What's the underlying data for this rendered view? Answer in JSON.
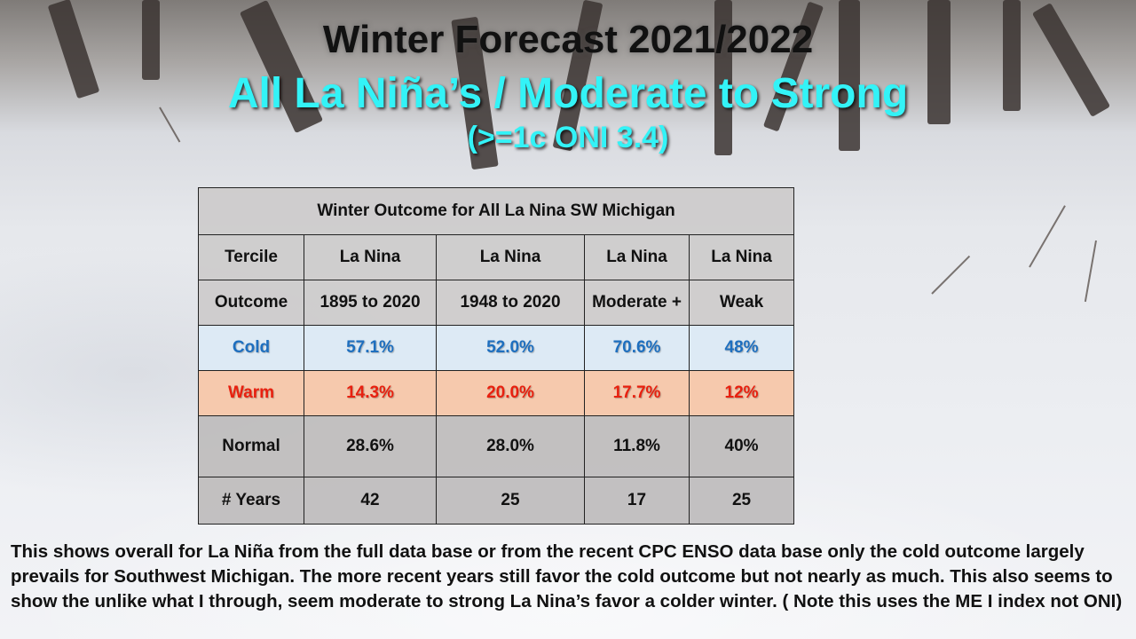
{
  "title": "Winter Forecast 2021/2022",
  "subtitle": "All La Niña’s / Moderate to Strong",
  "subtitle2": "(>=1c ONI 3.4)",
  "table": {
    "heading": "Winter Outcome for All La Nina SW Michigan",
    "tercile_row": [
      "Tercile",
      "La Nina",
      "La Nina",
      "La Nina",
      "La Nina"
    ],
    "outcome_row": [
      "Outcome",
      "1895 to 2020",
      "1948 to 2020",
      "Moderate +",
      "Weak"
    ],
    "rows": [
      {
        "label": "Cold",
        "values": [
          "57.1%",
          "52.0%",
          "70.6%",
          "48%"
        ],
        "color": "#1e6fbf"
      },
      {
        "label": "Warm",
        "values": [
          "14.3%",
          "20.0%",
          "17.7%",
          "12%"
        ],
        "color": "#e8200f"
      },
      {
        "label": "Normal",
        "values": [
          "28.6%",
          "28.0%",
          "11.8%",
          "40%"
        ],
        "color": "#111111"
      },
      {
        "label": "# Years",
        "values": [
          "42",
          "25",
          "17",
          "25"
        ],
        "color": "#111111"
      }
    ]
  },
  "note": "This shows overall for La Niña from the full data base or from the recent CPC ENSO data base only the cold outcome largely prevails for Southwest Michigan. The more recent years still favor the cold outcome but not nearly as much.  This also seems to show the unlike what I through, seem moderate to strong La Nina’s favor a colder winter.   ( Note this uses the ME I index not ONI)"
}
